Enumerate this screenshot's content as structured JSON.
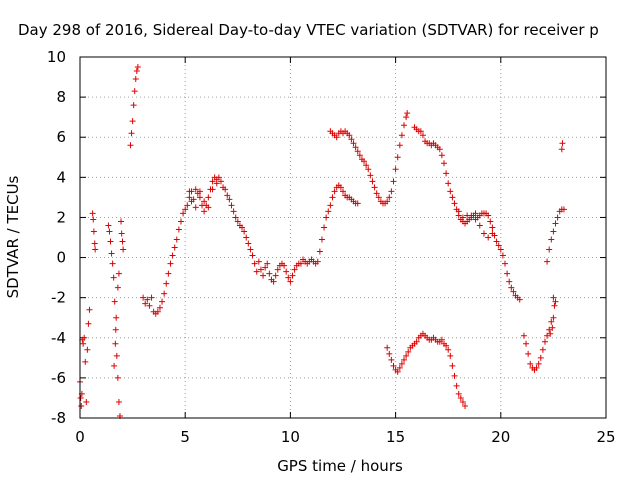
{
  "chart_data": {
    "type": "scatter",
    "title": "Day 298 of 2016, Sidereal Day-to-day VTEC variation (SDTVAR) for receiver p",
    "xlabel": "GPS time / hours",
    "ylabel": "SDTVAR / TECUs",
    "xlim": [
      0,
      25
    ],
    "ylim": [
      -8,
      10
    ],
    "xticks": [
      "0",
      "5",
      "10",
      "15",
      "20",
      "25"
    ],
    "yticks": [
      "-8",
      "-6",
      "-4",
      "-2",
      "0",
      "2",
      "4",
      "6",
      "8",
      "10"
    ],
    "grid": true,
    "marker": "+",
    "color": "#e00000",
    "segments": [
      [
        [
          0.0,
          -6.2
        ],
        [
          0.03,
          -7.0
        ],
        [
          0.06,
          -7.4
        ],
        [
          0.09,
          -6.8
        ],
        [
          0.11,
          -4.1
        ],
        [
          0.15,
          -4.3
        ],
        [
          0.2,
          -4.0
        ],
        [
          0.25,
          -5.2
        ],
        [
          0.3,
          -7.2
        ],
        [
          0.35,
          -4.6
        ],
        [
          0.4,
          -3.3
        ],
        [
          0.45,
          -2.6
        ]
      ],
      [
        [
          0.6,
          2.2
        ],
        [
          0.63,
          1.9
        ],
        [
          0.66,
          1.3
        ],
        [
          0.7,
          0.7
        ],
        [
          0.72,
          0.4
        ]
      ],
      [
        [
          1.35,
          1.6
        ],
        [
          1.4,
          1.3
        ],
        [
          1.45,
          0.8
        ],
        [
          1.5,
          0.2
        ],
        [
          1.55,
          -0.3
        ],
        [
          1.6,
          -1.0
        ],
        [
          1.65,
          -2.2
        ],
        [
          1.7,
          -3.6
        ],
        [
          1.75,
          -4.9
        ],
        [
          1.8,
          -6.0
        ],
        [
          1.85,
          -7.2
        ],
        [
          1.9,
          -7.9
        ],
        [
          1.62,
          -5.4
        ],
        [
          1.68,
          -4.3
        ],
        [
          1.72,
          -3.0
        ],
        [
          1.8,
          -1.5
        ],
        [
          1.85,
          -0.8
        ]
      ],
      [
        [
          1.95,
          1.8
        ],
        [
          1.98,
          1.2
        ],
        [
          2.02,
          0.8
        ],
        [
          2.05,
          0.4
        ]
      ],
      [
        [
          2.4,
          5.6
        ],
        [
          2.45,
          6.2
        ],
        [
          2.5,
          6.8
        ],
        [
          2.55,
          7.6
        ],
        [
          2.6,
          8.3
        ],
        [
          2.65,
          8.9
        ],
        [
          2.7,
          9.3
        ],
        [
          2.75,
          9.5
        ]
      ],
      [
        [
          3.0,
          -2.0
        ],
        [
          3.1,
          -2.3
        ],
        [
          3.2,
          -2.1
        ],
        [
          3.3,
          -2.4
        ],
        [
          3.4,
          -2.0
        ],
        [
          3.5,
          -2.7
        ],
        [
          3.6,
          -2.8
        ],
        [
          3.7,
          -2.7
        ],
        [
          3.8,
          -2.5
        ],
        [
          3.9,
          -2.2
        ],
        [
          4.0,
          -1.8
        ],
        [
          4.1,
          -1.3
        ],
        [
          4.2,
          -0.8
        ],
        [
          4.3,
          -0.3
        ],
        [
          4.4,
          0.1
        ],
        [
          4.5,
          0.5
        ],
        [
          4.6,
          0.9
        ],
        [
          4.7,
          1.4
        ],
        [
          4.8,
          1.8
        ],
        [
          4.9,
          2.2
        ],
        [
          5.0,
          2.4
        ],
        [
          5.1,
          2.6
        ],
        [
          5.2,
          3.0
        ],
        [
          5.3,
          3.3
        ],
        [
          5.4,
          2.9
        ],
        [
          5.5,
          2.5
        ],
        [
          5.6,
          3.2
        ],
        [
          5.7,
          3.0
        ],
        [
          5.8,
          2.6
        ],
        [
          5.9,
          2.3
        ],
        [
          6.0,
          2.6
        ],
        [
          6.1,
          3.0
        ],
        [
          6.2,
          3.4
        ],
        [
          6.3,
          3.8
        ],
        [
          6.4,
          4.0
        ],
        [
          6.5,
          3.9
        ],
        [
          6.6,
          4.0
        ],
        [
          6.7,
          3.8
        ],
        [
          6.8,
          3.5
        ],
        [
          6.9,
          3.4
        ],
        [
          7.0,
          3.1
        ],
        [
          7.1,
          2.9
        ],
        [
          7.2,
          2.6
        ],
        [
          7.3,
          2.3
        ],
        [
          7.4,
          2.0
        ],
        [
          7.5,
          1.8
        ],
        [
          7.6,
          1.6
        ],
        [
          7.7,
          1.5
        ],
        [
          7.8,
          1.3
        ],
        [
          7.9,
          1.0
        ],
        [
          8.0,
          0.7
        ],
        [
          8.1,
          0.4
        ],
        [
          8.2,
          0.1
        ],
        [
          8.3,
          -0.3
        ],
        [
          8.4,
          -0.7
        ],
        [
          8.5,
          -0.2
        ],
        [
          8.6,
          -0.6
        ],
        [
          8.7,
          -0.9
        ],
        [
          8.8,
          -0.5
        ],
        [
          8.9,
          -0.3
        ],
        [
          9.0,
          -0.8
        ],
        [
          9.1,
          -1.1
        ],
        [
          9.2,
          -1.2
        ],
        [
          9.3,
          -0.9
        ],
        [
          9.4,
          -0.6
        ],
        [
          9.5,
          -0.4
        ],
        [
          9.6,
          -0.3
        ],
        [
          9.7,
          -0.4
        ],
        [
          9.8,
          -0.7
        ],
        [
          9.9,
          -1.0
        ],
        [
          10.0,
          -1.2
        ],
        [
          10.1,
          -0.9
        ],
        [
          10.2,
          -0.6
        ],
        [
          10.3,
          -0.4
        ],
        [
          10.4,
          -0.3
        ],
        [
          10.5,
          -0.3
        ],
        [
          10.6,
          -0.1
        ],
        [
          10.7,
          -0.2
        ],
        [
          10.8,
          -0.3
        ],
        [
          10.9,
          -0.2
        ],
        [
          11.0,
          -0.1
        ],
        [
          11.1,
          -0.2
        ],
        [
          11.2,
          -0.3
        ],
        [
          11.3,
          -0.2
        ],
        [
          11.4,
          0.3
        ],
        [
          11.5,
          0.9
        ],
        [
          11.6,
          1.5
        ],
        [
          11.7,
          2.0
        ],
        [
          11.8,
          2.3
        ],
        [
          11.9,
          2.6
        ],
        [
          12.0,
          3.0
        ],
        [
          12.1,
          3.3
        ],
        [
          12.2,
          3.5
        ],
        [
          12.3,
          3.6
        ],
        [
          12.4,
          3.5
        ],
        [
          12.5,
          3.3
        ],
        [
          12.6,
          3.1
        ],
        [
          12.7,
          3.0
        ],
        [
          12.8,
          3.0
        ],
        [
          12.9,
          2.9
        ],
        [
          13.0,
          2.8
        ],
        [
          13.1,
          2.7
        ],
        [
          13.2,
          2.7
        ]
      ],
      [
        [
          5.2,
          3.3
        ],
        [
          5.3,
          2.8
        ],
        [
          5.5,
          3.4
        ],
        [
          5.7,
          3.3
        ],
        [
          5.9,
          2.8
        ],
        [
          6.1,
          2.5
        ],
        [
          6.3,
          3.4
        ],
        [
          6.5,
          3.7
        ]
      ],
      [
        [
          11.9,
          6.3
        ],
        [
          12.0,
          6.2
        ],
        [
          12.1,
          6.1
        ],
        [
          12.2,
          6.0
        ],
        [
          12.3,
          6.2
        ],
        [
          12.4,
          6.3
        ],
        [
          12.5,
          6.2
        ],
        [
          12.6,
          6.3
        ],
        [
          12.7,
          6.2
        ],
        [
          12.8,
          6.1
        ],
        [
          12.9,
          5.9
        ],
        [
          13.0,
          5.7
        ],
        [
          13.1,
          5.5
        ],
        [
          13.2,
          5.3
        ],
        [
          13.3,
          5.1
        ],
        [
          13.4,
          4.9
        ],
        [
          13.5,
          4.8
        ],
        [
          13.6,
          4.6
        ],
        [
          13.7,
          4.4
        ],
        [
          13.8,
          4.1
        ],
        [
          13.9,
          3.8
        ],
        [
          14.0,
          3.5
        ],
        [
          14.1,
          3.2
        ],
        [
          14.2,
          3.0
        ],
        [
          14.3,
          2.8
        ],
        [
          14.4,
          2.7
        ],
        [
          14.5,
          2.7
        ],
        [
          14.6,
          2.8
        ],
        [
          14.7,
          3.0
        ],
        [
          14.8,
          3.3
        ],
        [
          14.9,
          3.8
        ],
        [
          15.0,
          4.4
        ],
        [
          15.1,
          5.0
        ],
        [
          15.2,
          5.6
        ],
        [
          15.3,
          6.1
        ],
        [
          15.4,
          6.6
        ],
        [
          15.5,
          7.0
        ],
        [
          15.55,
          7.2
        ]
      ],
      [
        [
          14.6,
          -4.5
        ],
        [
          14.7,
          -4.8
        ],
        [
          14.8,
          -5.1
        ],
        [
          14.9,
          -5.4
        ],
        [
          15.0,
          -5.6
        ],
        [
          15.1,
          -5.7
        ],
        [
          15.2,
          -5.5
        ],
        [
          15.3,
          -5.3
        ],
        [
          15.4,
          -5.1
        ],
        [
          15.5,
          -4.9
        ],
        [
          15.6,
          -4.7
        ],
        [
          15.7,
          -4.5
        ],
        [
          15.8,
          -4.4
        ],
        [
          15.9,
          -4.3
        ],
        [
          16.0,
          -4.2
        ],
        [
          16.1,
          -4.0
        ],
        [
          16.2,
          -3.9
        ],
        [
          16.3,
          -3.8
        ],
        [
          16.4,
          -3.9
        ],
        [
          16.5,
          -4.0
        ],
        [
          16.6,
          -4.1
        ],
        [
          16.7,
          -4.1
        ],
        [
          16.8,
          -4.0
        ],
        [
          16.9,
          -4.1
        ],
        [
          17.0,
          -4.2
        ],
        [
          17.1,
          -4.2
        ],
        [
          17.2,
          -4.1
        ],
        [
          17.3,
          -4.3
        ],
        [
          17.4,
          -4.4
        ],
        [
          17.5,
          -4.6
        ],
        [
          17.6,
          -4.9
        ],
        [
          17.7,
          -5.4
        ],
        [
          17.8,
          -5.9
        ],
        [
          17.9,
          -6.4
        ],
        [
          18.0,
          -6.8
        ],
        [
          18.1,
          -7.0
        ],
        [
          18.2,
          -7.2
        ],
        [
          18.3,
          -7.4
        ]
      ],
      [
        [
          15.9,
          6.5
        ],
        [
          16.0,
          6.4
        ],
        [
          16.1,
          6.3
        ],
        [
          16.2,
          6.3
        ],
        [
          16.3,
          6.1
        ],
        [
          16.4,
          5.8
        ],
        [
          16.5,
          5.7
        ],
        [
          16.6,
          5.7
        ],
        [
          16.7,
          5.6
        ],
        [
          16.8,
          5.7
        ],
        [
          16.9,
          5.6
        ],
        [
          17.0,
          5.5
        ],
        [
          17.1,
          5.4
        ],
        [
          17.2,
          5.1
        ],
        [
          17.3,
          4.7
        ],
        [
          17.4,
          4.2
        ],
        [
          17.5,
          3.7
        ],
        [
          17.6,
          3.3
        ],
        [
          17.7,
          3.0
        ],
        [
          17.8,
          2.7
        ],
        [
          17.9,
          2.4
        ],
        [
          18.0,
          2.1
        ],
        [
          18.1,
          1.9
        ],
        [
          18.2,
          1.8
        ],
        [
          18.3,
          1.7
        ],
        [
          18.4,
          1.8
        ],
        [
          18.5,
          1.9
        ],
        [
          18.6,
          2.0
        ],
        [
          18.7,
          2.1
        ],
        [
          18.8,
          2.2
        ],
        [
          18.9,
          2.0
        ],
        [
          19.0,
          2.1
        ],
        [
          19.1,
          2.2
        ],
        [
          19.2,
          2.2
        ],
        [
          19.3,
          2.2
        ],
        [
          19.4,
          2.1
        ],
        [
          19.5,
          1.8
        ],
        [
          19.6,
          1.5
        ],
        [
          19.7,
          1.1
        ],
        [
          19.8,
          0.8
        ],
        [
          19.9,
          0.6
        ],
        [
          20.0,
          0.4
        ],
        [
          20.1,
          0.1
        ],
        [
          20.2,
          -0.3
        ],
        [
          20.3,
          -0.8
        ],
        [
          20.4,
          -1.2
        ],
        [
          20.5,
          -1.5
        ],
        [
          20.6,
          -1.7
        ],
        [
          20.7,
          -1.9
        ],
        [
          20.8,
          -2.0
        ],
        [
          20.9,
          -2.1
        ]
      ],
      [
        [
          18.0,
          2.3
        ],
        [
          18.2,
          2.0
        ],
        [
          18.4,
          2.1
        ],
        [
          18.6,
          2.1
        ],
        [
          18.8,
          1.9
        ],
        [
          19.0,
          1.6
        ],
        [
          19.2,
          1.2
        ],
        [
          19.4,
          1.0
        ],
        [
          19.6,
          1.2
        ]
      ],
      [
        [
          21.1,
          -3.9
        ],
        [
          21.2,
          -4.3
        ],
        [
          21.3,
          -4.8
        ],
        [
          21.4,
          -5.3
        ],
        [
          21.5,
          -5.5
        ],
        [
          21.6,
          -5.6
        ],
        [
          21.7,
          -5.5
        ],
        [
          21.8,
          -5.3
        ],
        [
          21.9,
          -5.0
        ],
        [
          22.0,
          -4.6
        ],
        [
          22.1,
          -4.2
        ],
        [
          22.2,
          -3.9
        ],
        [
          22.3,
          -3.6
        ],
        [
          22.4,
          -3.2
        ],
        [
          22.5,
          -3.0
        ],
        [
          22.45,
          -3.5
        ],
        [
          22.35,
          -3.8
        ]
      ],
      [
        [
          22.2,
          -0.2
        ],
        [
          22.3,
          0.4
        ],
        [
          22.4,
          0.9
        ],
        [
          22.5,
          1.3
        ],
        [
          22.6,
          1.7
        ],
        [
          22.7,
          2.0
        ],
        [
          22.8,
          2.3
        ],
        [
          22.9,
          2.4
        ],
        [
          23.0,
          2.4
        ],
        [
          22.5,
          -2.0
        ],
        [
          22.55,
          -2.4
        ],
        [
          22.6,
          -2.2
        ]
      ],
      [
        [
          22.9,
          5.4
        ],
        [
          22.93,
          5.7
        ]
      ]
    ]
  }
}
